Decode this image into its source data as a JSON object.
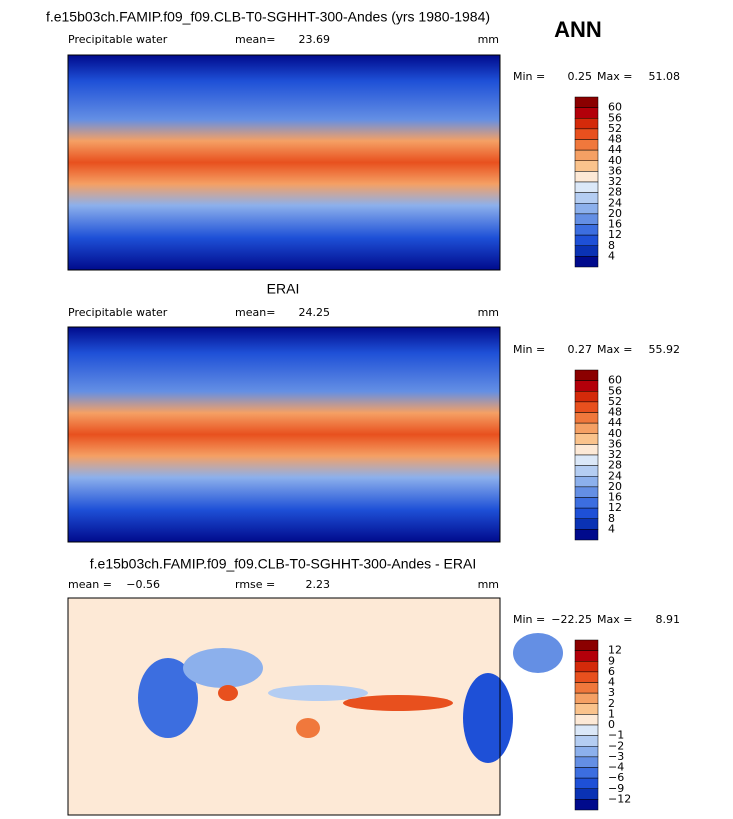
{
  "title": "ANN",
  "panels": [
    {
      "title": "f.e15b03ch.FAMIP.f09_f09.CLB-T0-SGHHT-300-Andes (yrs 1980-1984)",
      "left_label": "Precipitable water",
      "stat1_label": "mean=",
      "stat1": "23.69",
      "units": "mm",
      "min_label": "Min =",
      "min": "0.25",
      "max_label": "Max =",
      "max": "51.08",
      "colorbar_labels": [
        "60",
        "56",
        "52",
        "48",
        "44",
        "40",
        "36",
        "32",
        "28",
        "24",
        "20",
        "16",
        "12",
        "8",
        "4"
      ],
      "colorbar_colors": [
        "#8b0000",
        "#b3000a",
        "#d42a0a",
        "#e8501e",
        "#f0783c",
        "#f5a064",
        "#fac38c",
        "#fde9d6",
        "#dbe8f8",
        "#b4cdf2",
        "#8cb0ec",
        "#648fe4",
        "#3c6ee0",
        "#1e50d7",
        "#0a32b4",
        "#000a8c"
      ]
    },
    {
      "title": "ERAI",
      "left_label": "Precipitable water",
      "stat1_label": "mean=",
      "stat1": "24.25",
      "units": "mm",
      "min_label": "Min =",
      "min": "0.27",
      "max_label": "Max =",
      "max": "55.92",
      "colorbar_labels": [
        "60",
        "56",
        "52",
        "48",
        "44",
        "40",
        "36",
        "32",
        "28",
        "24",
        "20",
        "16",
        "12",
        "8",
        "4"
      ],
      "colorbar_colors": [
        "#8b0000",
        "#b3000a",
        "#d42a0a",
        "#e8501e",
        "#f0783c",
        "#f5a064",
        "#fac38c",
        "#fde9d6",
        "#dbe8f8",
        "#b4cdf2",
        "#8cb0ec",
        "#648fe4",
        "#3c6ee0",
        "#1e50d7",
        "#0a32b4",
        "#000a8c"
      ]
    },
    {
      "title": "f.e15b03ch.FAMIP.f09_f09.CLB-T0-SGHHT-300-Andes - ERAI",
      "left_label": "mean =",
      "left_value": "−0.56",
      "stat1_label": "rmse =",
      "stat1": "2.23",
      "units": "mm",
      "min_label": "Min =",
      "min": "−22.25",
      "max_label": "Max =",
      "max": "8.91",
      "colorbar_labels": [
        "12",
        "9",
        "6",
        "4",
        "3",
        "2",
        "1",
        "0",
        "−1",
        "−2",
        "−3",
        "−4",
        "−6",
        "−9",
        "−12"
      ],
      "colorbar_colors": [
        "#8b0000",
        "#b3000a",
        "#d42a0a",
        "#e8501e",
        "#f0783c",
        "#f5a064",
        "#fac38c",
        "#fde9d6",
        "#dbe8f8",
        "#b4cdf2",
        "#8cb0ec",
        "#648fe4",
        "#3c6ee0",
        "#1e50d7",
        "#0a32b4",
        "#000a8c"
      ]
    }
  ]
}
